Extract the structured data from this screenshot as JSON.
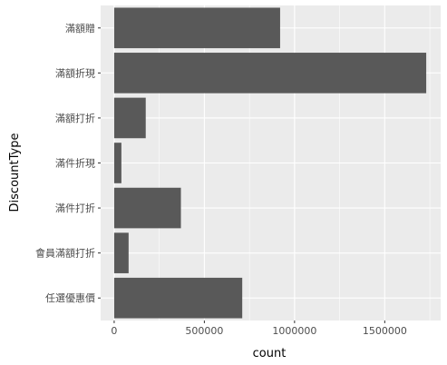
{
  "chart_data": {
    "type": "bar",
    "orientation": "horizontal",
    "categories": [
      "滿額贈",
      "滿額折現",
      "滿額打折",
      "滿件折現",
      "滿件打折",
      "會員滿額打折",
      "任選優惠價"
    ],
    "values": [
      920000,
      1730000,
      175000,
      40000,
      370000,
      80000,
      710000
    ],
    "xlabel": "count",
    "ylabel": "DiscountType",
    "xlim": [
      -75000,
      1810000
    ],
    "xticks": [
      0,
      500000,
      1000000,
      1500000
    ],
    "xtick_labels": [
      "0",
      "500000",
      "1000000",
      "1500000"
    ],
    "grid": true
  },
  "colors": {
    "panel": "#ebebeb",
    "grid_major": "#ffffff",
    "bar": "#595959",
    "tick_text": "#4d4d4d",
    "title_text": "#000000"
  }
}
